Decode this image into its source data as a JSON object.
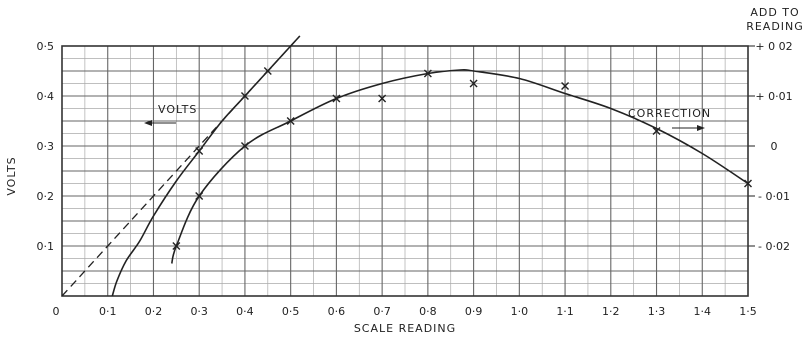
{
  "chart_data": {
    "type": "line",
    "title": "",
    "xlabel": "SCALE READING",
    "ylabel": "VOLTS",
    "y2label": "ADD TO READING",
    "xlim": [
      0,
      1.5
    ],
    "ylim": [
      0,
      0.5
    ],
    "y2lim": [
      -0.03,
      0.02
    ],
    "grid": true,
    "x_ticks": [
      "0",
      "0·1",
      "0·2",
      "0·3",
      "0·4",
      "0·5",
      "0·6",
      "0·7",
      "0·8",
      "0·9",
      "1·0",
      "1·1",
      "1·2",
      "1·3",
      "1·4",
      "1·5"
    ],
    "y_ticks": [
      "0",
      "0·1",
      "0·2",
      "0·3",
      "0·4",
      "0·5"
    ],
    "y2_ticks": [
      "- 0·02",
      "- 0·01",
      "0",
      "+ 0·01",
      "+ 0 02"
    ],
    "series": [
      {
        "name": "VOLTS",
        "axis": "left",
        "style": "solid",
        "points": [
          [
            0.11,
            0.0
          ],
          [
            0.12,
            0.03
          ],
          [
            0.14,
            0.07
          ],
          [
            0.17,
            0.11
          ],
          [
            0.2,
            0.16
          ],
          [
            0.25,
            0.23
          ],
          [
            0.3,
            0.29
          ],
          [
            0.35,
            0.35
          ],
          [
            0.4,
            0.4
          ],
          [
            0.45,
            0.45
          ],
          [
            0.5,
            0.5
          ],
          [
            0.52,
            0.52
          ]
        ],
        "marked_points": [
          [
            0.3,
            0.29
          ],
          [
            0.4,
            0.4
          ],
          [
            0.45,
            0.45
          ]
        ]
      },
      {
        "name": "",
        "axis": "left",
        "style": "dashed",
        "points": [
          [
            0.0,
            0.0
          ],
          [
            0.52,
            0.52
          ]
        ]
      },
      {
        "name": "CORRECTION",
        "axis": "right",
        "style": "solid",
        "points": [
          [
            0.24,
            -0.0235
          ],
          [
            0.25,
            -0.02
          ],
          [
            0.3,
            -0.01
          ],
          [
            0.4,
            0.0
          ],
          [
            0.5,
            0.005
          ],
          [
            0.6,
            0.0095
          ],
          [
            0.7,
            0.0125
          ],
          [
            0.8,
            0.0145
          ],
          [
            0.87,
            0.0152
          ],
          [
            0.9,
            0.015
          ],
          [
            1.0,
            0.0135
          ],
          [
            1.1,
            0.0105
          ],
          [
            1.2,
            0.0075
          ],
          [
            1.3,
            0.0035
          ],
          [
            1.4,
            -0.0015
          ],
          [
            1.5,
            -0.0075
          ]
        ],
        "marked_points": [
          [
            0.25,
            -0.02
          ],
          [
            0.3,
            -0.01
          ],
          [
            0.4,
            0.0
          ],
          [
            0.5,
            0.005
          ],
          [
            0.6,
            0.0095
          ],
          [
            0.7,
            0.0095
          ],
          [
            0.8,
            0.0145
          ],
          [
            0.9,
            0.0125
          ],
          [
            1.1,
            0.012
          ],
          [
            1.3,
            0.003
          ],
          [
            1.5,
            -0.0075
          ]
        ]
      }
    ],
    "annotations": [
      {
        "text": "VOLTS",
        "arrow": "left"
      },
      {
        "text": "CORRECTION",
        "arrow": "right"
      }
    ]
  }
}
